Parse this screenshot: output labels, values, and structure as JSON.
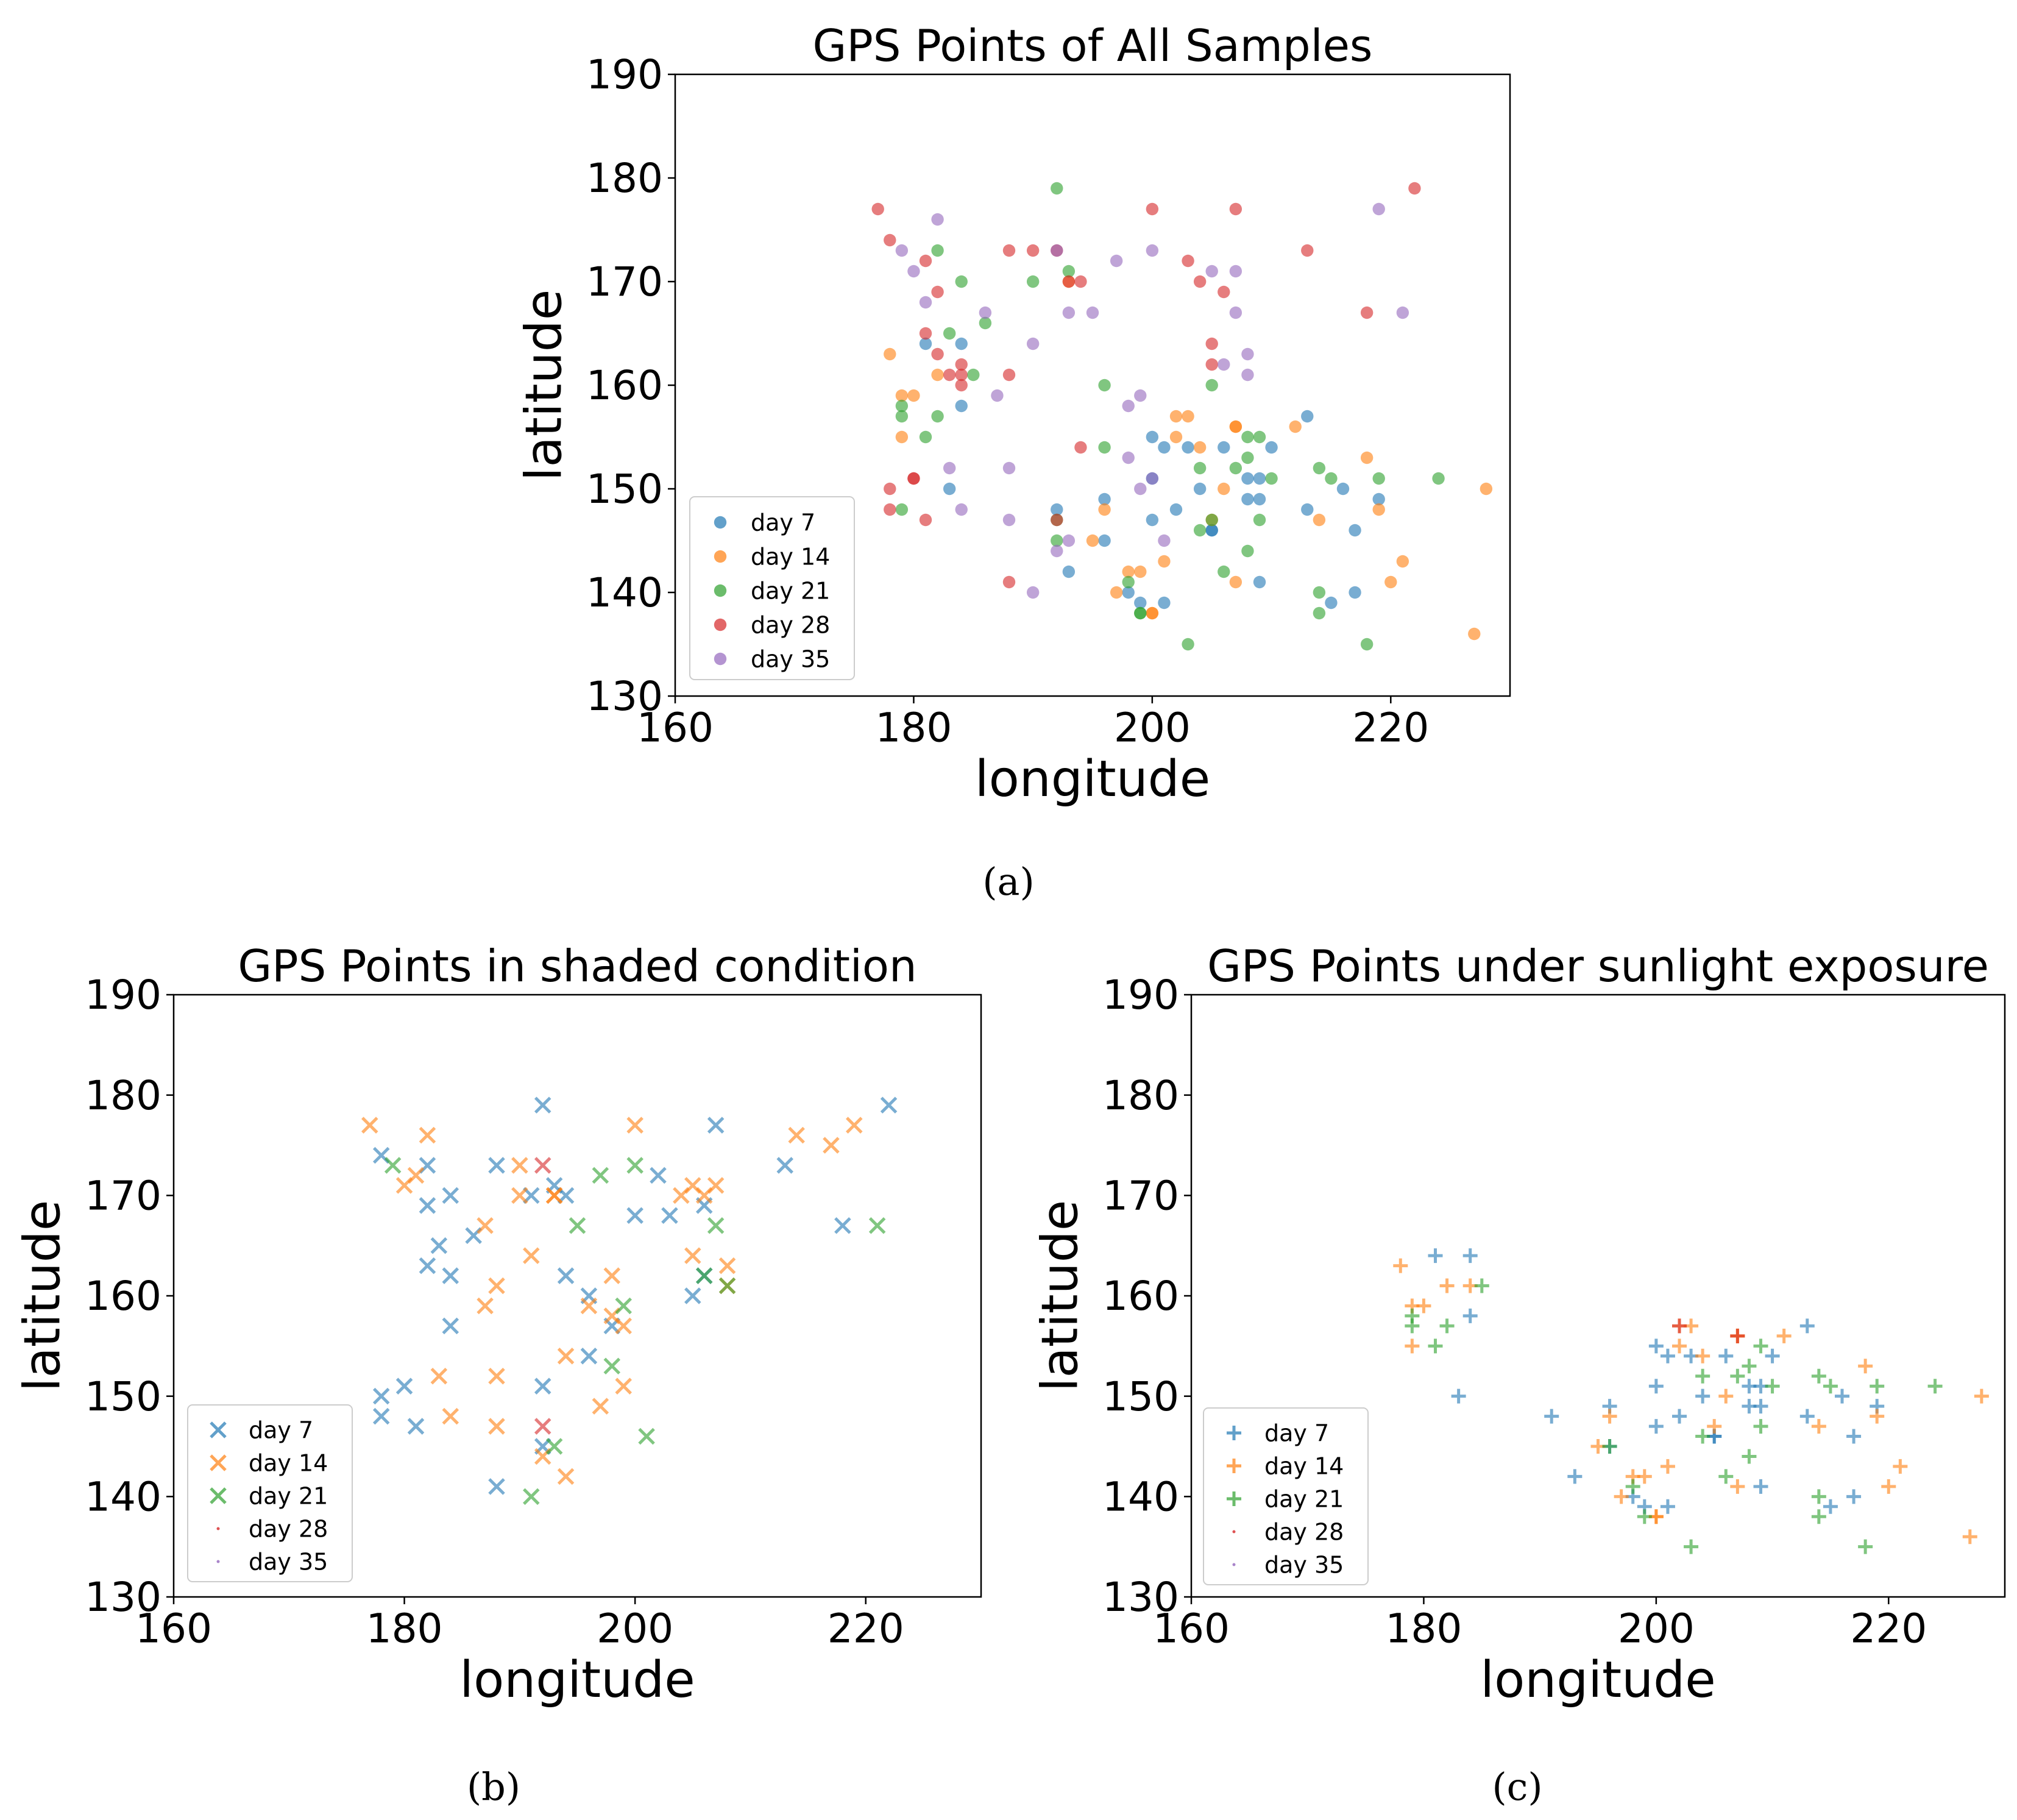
{
  "colors": {
    "day7": "#1f77b4",
    "day14": "#ff7f0e",
    "day21": "#2ca02c",
    "day28": "#d62728",
    "day35": "#9467bd"
  },
  "captions": {
    "a": "(a)",
    "b": "(b)",
    "c": "(c)"
  },
  "chart_data": [
    {
      "type": "scatter",
      "id": "a",
      "title": "GPS Points of All Samples",
      "xlabel": "longitude",
      "ylabel": "latitude",
      "xlim": [
        160,
        230
      ],
      "ylim": [
        130,
        190
      ],
      "xticks": [
        160,
        180,
        200,
        220
      ],
      "yticks": [
        130,
        140,
        150,
        160,
        170,
        180,
        190
      ],
      "marker": "circle",
      "legend_position": "lower-left",
      "series": [
        {
          "name": "day 7",
          "color_key": "day7",
          "x": [
            181,
            184,
            183,
            184,
            192,
            193,
            196,
            196,
            198,
            199,
            200,
            200,
            200,
            201,
            201,
            202,
            203,
            204,
            205,
            205,
            206,
            208,
            208,
            209,
            209,
            209,
            210,
            213,
            213,
            215,
            216,
            217,
            217,
            219
          ],
          "y": [
            164,
            164,
            150,
            158,
            148,
            142,
            149,
            145,
            140,
            139,
            155,
            151,
            147,
            139,
            154,
            148,
            154,
            150,
            146,
            146,
            154,
            149,
            151,
            149,
            151,
            141,
            154,
            157,
            148,
            139,
            150,
            140,
            146,
            149
          ]
        },
        {
          "name": "day 14",
          "color_key": "day14",
          "x": [
            178,
            179,
            179,
            180,
            182,
            193,
            195,
            196,
            197,
            198,
            199,
            200,
            200,
            201,
            202,
            202,
            203,
            204,
            205,
            206,
            207,
            207,
            207,
            212,
            214,
            218,
            219,
            220,
            221,
            227,
            228
          ],
          "y": [
            163,
            155,
            159,
            159,
            161,
            170,
            145,
            148,
            140,
            142,
            142,
            138,
            138,
            143,
            155,
            157,
            157,
            154,
            147,
            150,
            156,
            156,
            141,
            156,
            147,
            153,
            148,
            141,
            143,
            136,
            150
          ],
          "note": "approximate"
        },
        {
          "name": "day 21",
          "color_key": "day21",
          "x": [
            179,
            179,
            179,
            181,
            182,
            182,
            183,
            184,
            185,
            186,
            190,
            192,
            192,
            192,
            193,
            196,
            196,
            198,
            199,
            199,
            203,
            204,
            204,
            205,
            205,
            206,
            207,
            208,
            208,
            208,
            209,
            209,
            210,
            214,
            214,
            214,
            215,
            218,
            219,
            224
          ],
          "y": [
            158,
            157,
            148,
            155,
            157,
            173,
            165,
            170,
            161,
            166,
            170,
            179,
            145,
            147,
            171,
            160,
            154,
            141,
            138,
            138,
            135,
            152,
            146,
            160,
            147,
            142,
            152,
            153,
            155,
            144,
            147,
            155,
            151,
            152,
            140,
            138,
            151,
            135,
            151,
            151
          ]
        },
        {
          "name": "day 28",
          "color_key": "day28",
          "x": [
            177,
            178,
            178,
            178,
            180,
            180,
            181,
            181,
            181,
            182,
            182,
            183,
            184,
            184,
            184,
            188,
            188,
            188,
            190,
            192,
            192,
            193,
            194,
            194,
            200,
            203,
            204,
            205,
            205,
            206,
            207,
            213,
            218,
            222
          ],
          "y": [
            177,
            174,
            150,
            148,
            151,
            151,
            165,
            172,
            147,
            163,
            169,
            161,
            162,
            160,
            161,
            173,
            161,
            141,
            173,
            173,
            147,
            170,
            170,
            154,
            177,
            172,
            170,
            164,
            162,
            169,
            177,
            173,
            167,
            179
          ],
          "note": "approximate"
        },
        {
          "name": "day 35",
          "color_key": "day35",
          "x": [
            179,
            180,
            181,
            182,
            183,
            184,
            186,
            187,
            188,
            188,
            190,
            190,
            192,
            192,
            193,
            193,
            195,
            197,
            198,
            198,
            199,
            199,
            200,
            200,
            201,
            205,
            206,
            207,
            207,
            208,
            208,
            219,
            221
          ],
          "y": [
            173,
            171,
            168,
            176,
            152,
            148,
            167,
            159,
            152,
            147,
            164,
            140,
            173,
            144,
            167,
            145,
            167,
            172,
            158,
            153,
            159,
            150,
            173,
            151,
            145,
            171,
            162,
            171,
            167,
            163,
            161,
            177,
            167
          ],
          "note": "approximate"
        }
      ]
    },
    {
      "type": "scatter",
      "id": "b",
      "title": "GPS Points in shaded condition",
      "xlabel": "longitude",
      "ylabel": "latitude",
      "xlim": [
        160,
        230
      ],
      "ylim": [
        130,
        190
      ],
      "xticks": [
        160,
        180,
        200,
        220
      ],
      "yticks": [
        130,
        140,
        150,
        160,
        170,
        180,
        190
      ],
      "marker": "x",
      "legend_position": "lower-left",
      "series": [
        {
          "name": "day 7",
          "color_key": "day7",
          "x": [
            178,
            178,
            178,
            180,
            181,
            182,
            182,
            182,
            183,
            184,
            184,
            184,
            186,
            188,
            188,
            191,
            192,
            192,
            192,
            193,
            194,
            194,
            196,
            196,
            198,
            200,
            202,
            203,
            205,
            206,
            206,
            207,
            213,
            218,
            222
          ],
          "y": [
            174,
            150,
            148,
            151,
            147,
            173,
            169,
            163,
            165,
            162,
            170,
            157,
            166,
            173,
            141,
            170,
            179,
            151,
            145,
            171,
            170,
            162,
            160,
            154,
            157,
            168,
            172,
            168,
            160,
            162,
            169,
            177,
            173,
            167,
            179
          ],
          "note": "approximate"
        },
        {
          "name": "day 14",
          "color_key": "day14",
          "x": [
            177,
            180,
            181,
            182,
            183,
            184,
            187,
            187,
            188,
            188,
            188,
            190,
            190,
            191,
            192,
            193,
            193,
            194,
            194,
            196,
            197,
            198,
            198,
            199,
            199,
            200,
            204,
            205,
            205,
            206,
            207,
            208,
            208,
            214,
            217,
            219
          ],
          "y": [
            177,
            171,
            172,
            176,
            152,
            148,
            167,
            159,
            161,
            152,
            147,
            173,
            170,
            164,
            144,
            170,
            170,
            154,
            142,
            159,
            149,
            162,
            158,
            157,
            151,
            177,
            170,
            171,
            164,
            170,
            171,
            163,
            161,
            176,
            175,
            177
          ],
          "note": "approximate"
        },
        {
          "name": "day 21",
          "color_key": "day21",
          "x": [
            179,
            191,
            193,
            195,
            197,
            198,
            199,
            200,
            201,
            206,
            207,
            208,
            221
          ],
          "y": [
            173,
            140,
            145,
            167,
            172,
            153,
            159,
            173,
            146,
            162,
            167,
            161,
            167
          ]
        },
        {
          "name": "day 28",
          "color_key": "day28",
          "x": [
            192,
            192
          ],
          "y": [
            173,
            147
          ]
        },
        {
          "name": "day 35",
          "color_key": "day35",
          "x": [],
          "y": []
        }
      ]
    },
    {
      "type": "scatter",
      "id": "c",
      "title": "GPS Points under sunlight exposure",
      "xlabel": "longitude",
      "ylabel": "latitude",
      "xlim": [
        160,
        230
      ],
      "ylim": [
        130,
        190
      ],
      "xticks": [
        160,
        180,
        200,
        220
      ],
      "yticks": [
        130,
        140,
        150,
        160,
        170,
        180,
        190
      ],
      "marker": "plus",
      "legend_position": "lower-left",
      "series": [
        {
          "name": "day 7",
          "color_key": "day7",
          "x": [
            181,
            183,
            184,
            184,
            191,
            193,
            196,
            196,
            198,
            199,
            200,
            200,
            200,
            201,
            201,
            202,
            203,
            204,
            205,
            205,
            206,
            208,
            208,
            209,
            209,
            209,
            210,
            213,
            213,
            215,
            216,
            217,
            217,
            219
          ],
          "y": [
            164,
            150,
            164,
            158,
            148,
            142,
            149,
            145,
            140,
            139,
            155,
            151,
            147,
            139,
            154,
            148,
            154,
            150,
            146,
            146,
            154,
            149,
            151,
            149,
            151,
            141,
            154,
            157,
            148,
            139,
            150,
            140,
            146,
            149
          ],
          "note": "approximate"
        },
        {
          "name": "day 14",
          "color_key": "day14",
          "x": [
            178,
            179,
            179,
            180,
            182,
            184,
            195,
            196,
            197,
            198,
            199,
            200,
            200,
            201,
            202,
            202,
            203,
            204,
            205,
            206,
            207,
            207,
            207,
            211,
            214,
            218,
            219,
            220,
            221,
            227,
            228
          ],
          "y": [
            163,
            155,
            159,
            159,
            161,
            161,
            145,
            148,
            140,
            142,
            142,
            138,
            138,
            143,
            155,
            157,
            157,
            154,
            147,
            150,
            156,
            156,
            141,
            156,
            147,
            153,
            148,
            141,
            143,
            136,
            150
          ],
          "note": "approximate"
        },
        {
          "name": "day 21",
          "color_key": "day21",
          "x": [
            179,
            179,
            181,
            182,
            185,
            196,
            198,
            199,
            203,
            204,
            204,
            206,
            207,
            208,
            208,
            209,
            209,
            210,
            214,
            214,
            214,
            215,
            218,
            219,
            224
          ],
          "y": [
            158,
            157,
            155,
            157,
            161,
            145,
            141,
            138,
            135,
            152,
            146,
            142,
            152,
            153,
            144,
            147,
            155,
            151,
            152,
            140,
            138,
            151,
            135,
            151,
            151
          ],
          "note": "approximate"
        },
        {
          "name": "day 28",
          "color_key": "day28",
          "x": [
            202,
            207
          ],
          "y": [
            157,
            156
          ]
        },
        {
          "name": "day 35",
          "color_key": "day35",
          "x": [],
          "y": []
        }
      ]
    }
  ]
}
